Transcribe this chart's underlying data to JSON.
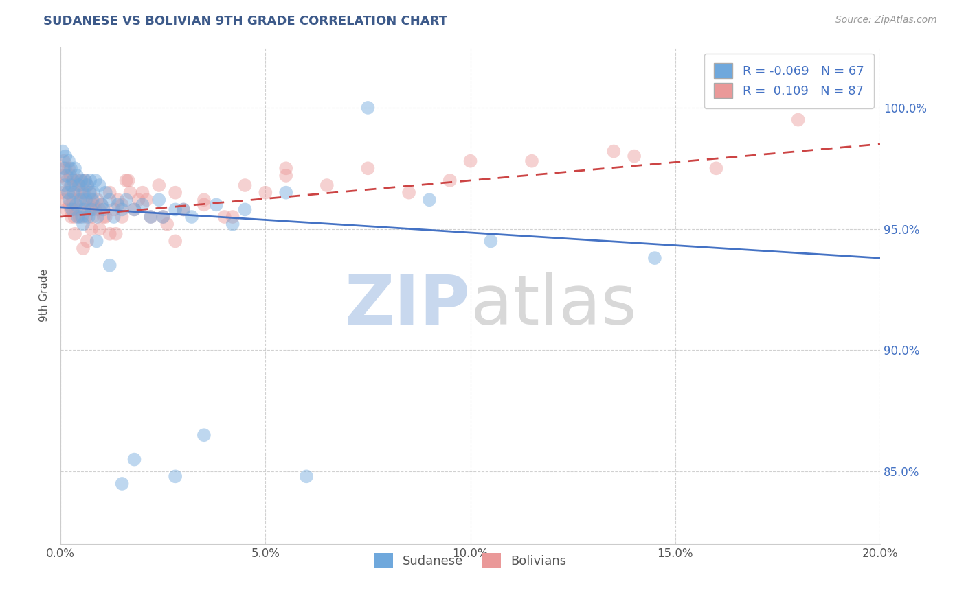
{
  "title": "SUDANESE VS BOLIVIAN 9TH GRADE CORRELATION CHART",
  "source_text": "Source: ZipAtlas.com",
  "ylabel": "9th Grade",
  "xlim": [
    0.0,
    20.0
  ],
  "ylim": [
    82.0,
    102.5
  ],
  "yticks": [
    85.0,
    90.0,
    95.0,
    100.0
  ],
  "ytick_labels": [
    "85.0%",
    "90.0%",
    "95.0%",
    "100.0%"
  ],
  "xticks": [
    0.0,
    5.0,
    10.0,
    15.0,
    20.0
  ],
  "xtick_labels": [
    "0.0%",
    "5.0%",
    "10.0%",
    "15.0%",
    "20.0%"
  ],
  "sudanese_R": -0.069,
  "sudanese_N": 67,
  "bolivian_R": 0.109,
  "bolivian_N": 87,
  "sudanese_color": "#6fa8dc",
  "bolivian_color": "#ea9999",
  "sudanese_line_color": "#4472c4",
  "bolivian_line_color": "#cc4444",
  "background_color": "#ffffff",
  "grid_color": "#cccccc",
  "title_color": "#3d5a8a",
  "watermark_color_zip": "#c8d8ee",
  "watermark_color_atlas": "#d8d8d8",
  "legend_R_color": "#4472c4",
  "right_axis_color": "#4472c4",
  "sudanese_x": [
    0.05,
    0.08,
    0.1,
    0.12,
    0.15,
    0.18,
    0.2,
    0.22,
    0.25,
    0.28,
    0.3,
    0.32,
    0.35,
    0.38,
    0.4,
    0.42,
    0.45,
    0.48,
    0.5,
    0.52,
    0.55,
    0.58,
    0.6,
    0.62,
    0.65,
    0.68,
    0.7,
    0.72,
    0.75,
    0.78,
    0.8,
    0.85,
    0.9,
    0.95,
    1.0,
    1.05,
    1.1,
    1.2,
    1.3,
    1.4,
    1.5,
    1.6,
    1.8,
    2.0,
    2.2,
    2.4,
    2.8,
    3.2,
    3.8,
    4.5,
    1.5,
    2.5,
    3.5,
    5.5,
    7.5,
    1.2,
    2.8,
    4.2,
    6.0,
    9.0,
    1.8,
    3.0,
    10.5,
    14.5,
    0.55,
    0.88,
    0.25
  ],
  "sudanese_y": [
    98.2,
    97.5,
    96.8,
    98.0,
    97.2,
    96.5,
    97.8,
    96.2,
    97.5,
    95.8,
    97.0,
    96.5,
    97.5,
    96.0,
    97.2,
    95.5,
    96.8,
    96.2,
    97.0,
    95.5,
    96.5,
    95.8,
    97.0,
    96.2,
    96.8,
    95.5,
    96.5,
    97.0,
    95.8,
    96.2,
    96.5,
    97.0,
    95.5,
    96.8,
    96.0,
    95.8,
    96.5,
    96.2,
    95.5,
    96.0,
    95.8,
    96.2,
    95.8,
    96.0,
    95.5,
    96.2,
    95.8,
    95.5,
    96.0,
    95.8,
    84.5,
    95.5,
    86.5,
    96.5,
    100.0,
    93.5,
    84.8,
    95.2,
    84.8,
    96.2,
    85.5,
    95.8,
    94.5,
    93.8,
    95.2,
    94.5,
    96.8
  ],
  "bolivian_x": [
    0.04,
    0.06,
    0.08,
    0.1,
    0.12,
    0.14,
    0.16,
    0.18,
    0.2,
    0.22,
    0.24,
    0.26,
    0.28,
    0.3,
    0.32,
    0.34,
    0.36,
    0.38,
    0.4,
    0.42,
    0.44,
    0.46,
    0.48,
    0.5,
    0.52,
    0.55,
    0.58,
    0.6,
    0.62,
    0.65,
    0.68,
    0.7,
    0.72,
    0.75,
    0.78,
    0.8,
    0.85,
    0.9,
    0.95,
    1.0,
    1.1,
    1.2,
    1.3,
    1.4,
    1.5,
    1.6,
    1.7,
    1.8,
    1.9,
    2.0,
    2.2,
    2.4,
    2.6,
    2.8,
    3.0,
    3.5,
    4.0,
    4.5,
    5.0,
    5.5,
    0.35,
    0.65,
    0.95,
    1.5,
    2.5,
    3.5,
    5.5,
    7.5,
    9.5,
    11.5,
    13.5,
    16.0,
    18.0,
    6.5,
    8.5,
    10.0,
    14.0,
    1.2,
    2.8,
    4.2,
    0.25,
    0.55,
    0.75,
    1.05,
    1.35,
    1.65,
    2.1
  ],
  "bolivian_y": [
    97.2,
    96.5,
    97.8,
    96.2,
    97.5,
    95.8,
    97.0,
    96.5,
    97.5,
    96.0,
    97.2,
    95.5,
    96.8,
    96.2,
    97.0,
    95.5,
    96.5,
    95.8,
    97.0,
    96.2,
    96.8,
    95.5,
    96.5,
    97.0,
    95.8,
    96.2,
    96.5,
    97.0,
    95.5,
    96.8,
    96.0,
    95.8,
    96.5,
    96.2,
    95.5,
    96.0,
    95.8,
    96.2,
    95.8,
    96.0,
    95.5,
    96.5,
    95.8,
    96.2,
    95.5,
    97.0,
    96.5,
    95.8,
    96.2,
    96.5,
    95.5,
    96.8,
    95.2,
    96.5,
    95.8,
    96.2,
    95.5,
    96.8,
    96.5,
    97.2,
    94.8,
    94.5,
    95.0,
    96.0,
    95.5,
    96.0,
    97.5,
    97.5,
    97.0,
    97.8,
    98.2,
    97.5,
    99.5,
    96.8,
    96.5,
    97.8,
    98.0,
    94.8,
    94.5,
    95.5,
    95.8,
    94.2,
    95.0,
    95.5,
    94.8,
    97.0,
    96.2
  ],
  "sud_line_x0": 0.0,
  "sud_line_y0": 95.9,
  "sud_line_x1": 20.0,
  "sud_line_y1": 93.8,
  "bol_line_x0": 0.0,
  "bol_line_y0": 95.5,
  "bol_line_x1": 20.0,
  "bol_line_y1": 98.5
}
